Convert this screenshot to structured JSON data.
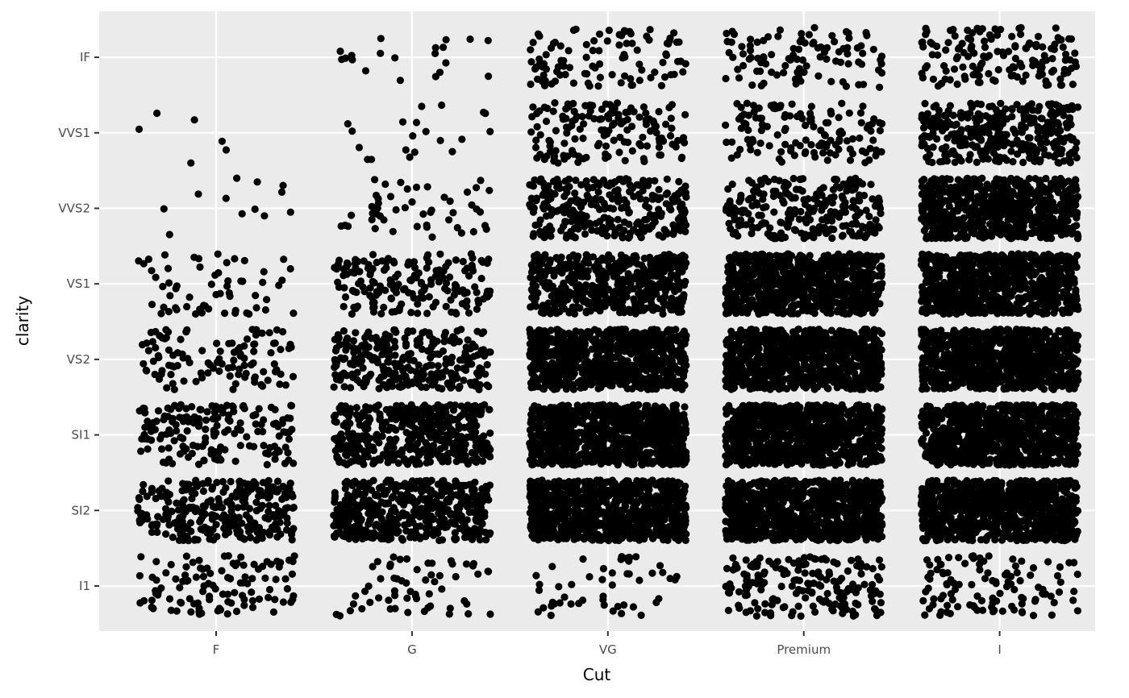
{
  "chart_data": {
    "type": "scatter",
    "subtype": "jittered categorical scatter",
    "xlabel": "Cut",
    "ylabel": "clarity",
    "x_categories": [
      "F",
      "G",
      "VG",
      "Premium",
      "I"
    ],
    "y_categories": [
      "I1",
      "SI2",
      "SI1",
      "VS2",
      "VS1",
      "VVS2",
      "VVS1",
      "IF"
    ],
    "jitter": {
      "width": 0.4,
      "height": 0.4
    },
    "grid": true,
    "point_color": "#000000",
    "panel_background": "#ebebeb",
    "approx_point_counts": {
      "F": [
        110,
        300,
        170,
        110,
        60,
        12,
        6,
        0
      ],
      "G": [
        60,
        500,
        450,
        300,
        180,
        50,
        20,
        20
      ],
      "VG": [
        50,
        900,
        900,
        800,
        500,
        300,
        150,
        100
      ],
      "Premium": [
        180,
        900,
        900,
        900,
        800,
        250,
        130,
        100
      ],
      "I": [
        110,
        900,
        900,
        900,
        800,
        700,
        350,
        150
      ]
    }
  }
}
